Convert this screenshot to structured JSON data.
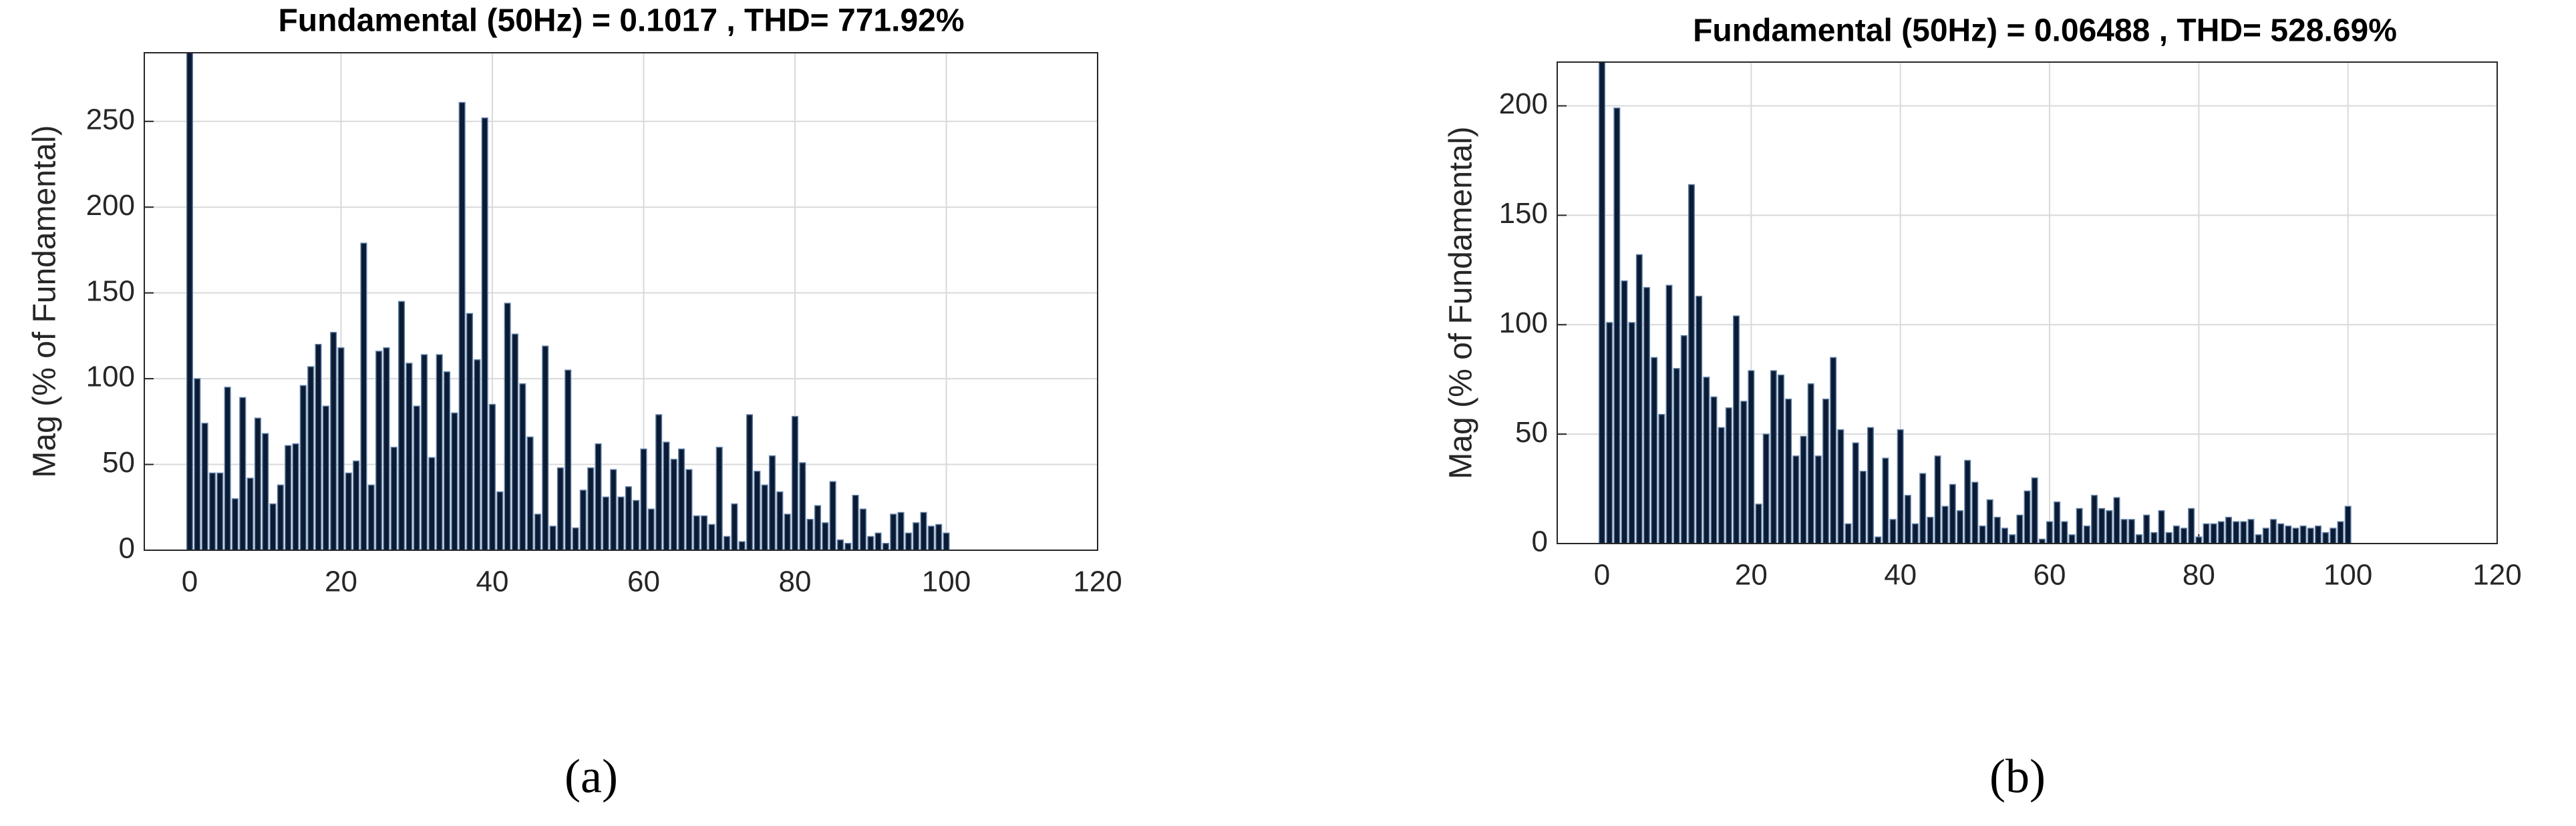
{
  "chart_data": [
    {
      "type": "bar",
      "title": "Fundamental (50Hz) = 0.1017 , THD= 771.92%",
      "ylabel": "Mag (% of Fundamental)",
      "caption": "(a)",
      "color": "#0b1b33",
      "grid": true,
      "xlim": [
        -6,
        120
      ],
      "xticks": [
        0,
        20,
        40,
        60,
        80,
        100,
        120
      ],
      "ylim": [
        0,
        290
      ],
      "yticks": [
        0,
        50,
        100,
        150,
        200,
        250
      ],
      "x": [
        0,
        1,
        2,
        3,
        4,
        5,
        6,
        7,
        8,
        9,
        10,
        11,
        12,
        13,
        14,
        15,
        16,
        17,
        18,
        19,
        20,
        21,
        22,
        23,
        24,
        25,
        26,
        27,
        28,
        29,
        30,
        31,
        32,
        33,
        34,
        35,
        36,
        37,
        38,
        39,
        40,
        41,
        42,
        43,
        44,
        45,
        46,
        47,
        48,
        49,
        50,
        51,
        52,
        53,
        54,
        55,
        56,
        57,
        58,
        59,
        60,
        61,
        62,
        63,
        64,
        65,
        66,
        67,
        68,
        69,
        70,
        71,
        72,
        73,
        74,
        75,
        76,
        77,
        78,
        79,
        80,
        81,
        82,
        83,
        84,
        85,
        86,
        87,
        88,
        89,
        90,
        91,
        92,
        93,
        94,
        95,
        96,
        97,
        98,
        99,
        100
      ],
      "values": [
        290,
        100,
        74,
        45,
        45,
        95,
        30,
        89,
        42,
        77,
        68,
        27,
        38,
        61,
        62,
        96,
        107,
        120,
        84,
        127,
        118,
        45,
        52,
        179,
        38,
        116,
        118,
        60,
        145,
        109,
        84,
        114,
        54,
        114,
        104,
        80,
        261,
        138,
        111,
        252,
        85,
        34,
        144,
        126,
        97,
        66,
        21,
        119,
        14,
        48,
        105,
        13,
        35,
        48,
        62,
        31,
        47,
        31,
        37,
        29,
        59,
        24,
        79,
        63,
        53,
        59,
        47,
        20,
        20,
        15,
        60,
        8,
        27,
        5,
        79,
        46,
        38,
        55,
        34,
        21,
        78,
        51,
        18,
        26,
        16,
        40,
        6,
        4,
        32,
        24,
        8,
        10,
        4,
        21,
        22,
        10,
        16,
        22,
        14,
        15,
        10
      ]
    },
    {
      "type": "bar",
      "title": "Fundamental (50Hz) = 0.06488 , THD= 528.69%",
      "ylabel": "Mag (% of Fundamental)",
      "caption": "(b)",
      "color": "#0b1b33",
      "grid": true,
      "xlim": [
        -6,
        120
      ],
      "xticks": [
        0,
        20,
        40,
        60,
        80,
        100,
        120
      ],
      "ylim": [
        0,
        220
      ],
      "yticks": [
        0,
        50,
        100,
        150,
        200
      ],
      "x": [
        0,
        1,
        2,
        3,
        4,
        5,
        6,
        7,
        8,
        9,
        10,
        11,
        12,
        13,
        14,
        15,
        16,
        17,
        18,
        19,
        20,
        21,
        22,
        23,
        24,
        25,
        26,
        27,
        28,
        29,
        30,
        31,
        32,
        33,
        34,
        35,
        36,
        37,
        38,
        39,
        40,
        41,
        42,
        43,
        44,
        45,
        46,
        47,
        48,
        49,
        50,
        51,
        52,
        53,
        54,
        55,
        56,
        57,
        58,
        59,
        60,
        61,
        62,
        63,
        64,
        65,
        66,
        67,
        68,
        69,
        70,
        71,
        72,
        73,
        74,
        75,
        76,
        77,
        78,
        79,
        80,
        81,
        82,
        83,
        84,
        85,
        86,
        87,
        88,
        89,
        90,
        91,
        92,
        93,
        94,
        95,
        96,
        97,
        98,
        99,
        100
      ],
      "values": [
        220,
        101,
        199,
        120,
        101,
        132,
        117,
        85,
        59,
        118,
        80,
        95,
        164,
        113,
        76,
        67,
        53,
        62,
        104,
        65,
        79,
        18,
        50,
        79,
        77,
        66,
        40,
        49,
        73,
        40,
        66,
        85,
        52,
        9,
        46,
        33,
        53,
        3,
        39,
        11,
        52,
        22,
        9,
        32,
        12,
        40,
        17,
        27,
        15,
        38,
        28,
        8,
        20,
        12,
        7,
        4,
        13,
        24,
        30,
        2,
        10,
        19,
        10,
        4,
        16,
        8,
        22,
        16,
        15,
        21,
        11,
        11,
        4,
        13,
        5,
        15,
        5,
        8,
        7,
        16,
        3,
        9,
        9,
        10,
        12,
        10,
        10,
        11,
        4,
        7,
        11,
        9,
        8,
        7,
        8,
        7,
        8,
        5,
        7,
        10,
        17
      ]
    }
  ]
}
